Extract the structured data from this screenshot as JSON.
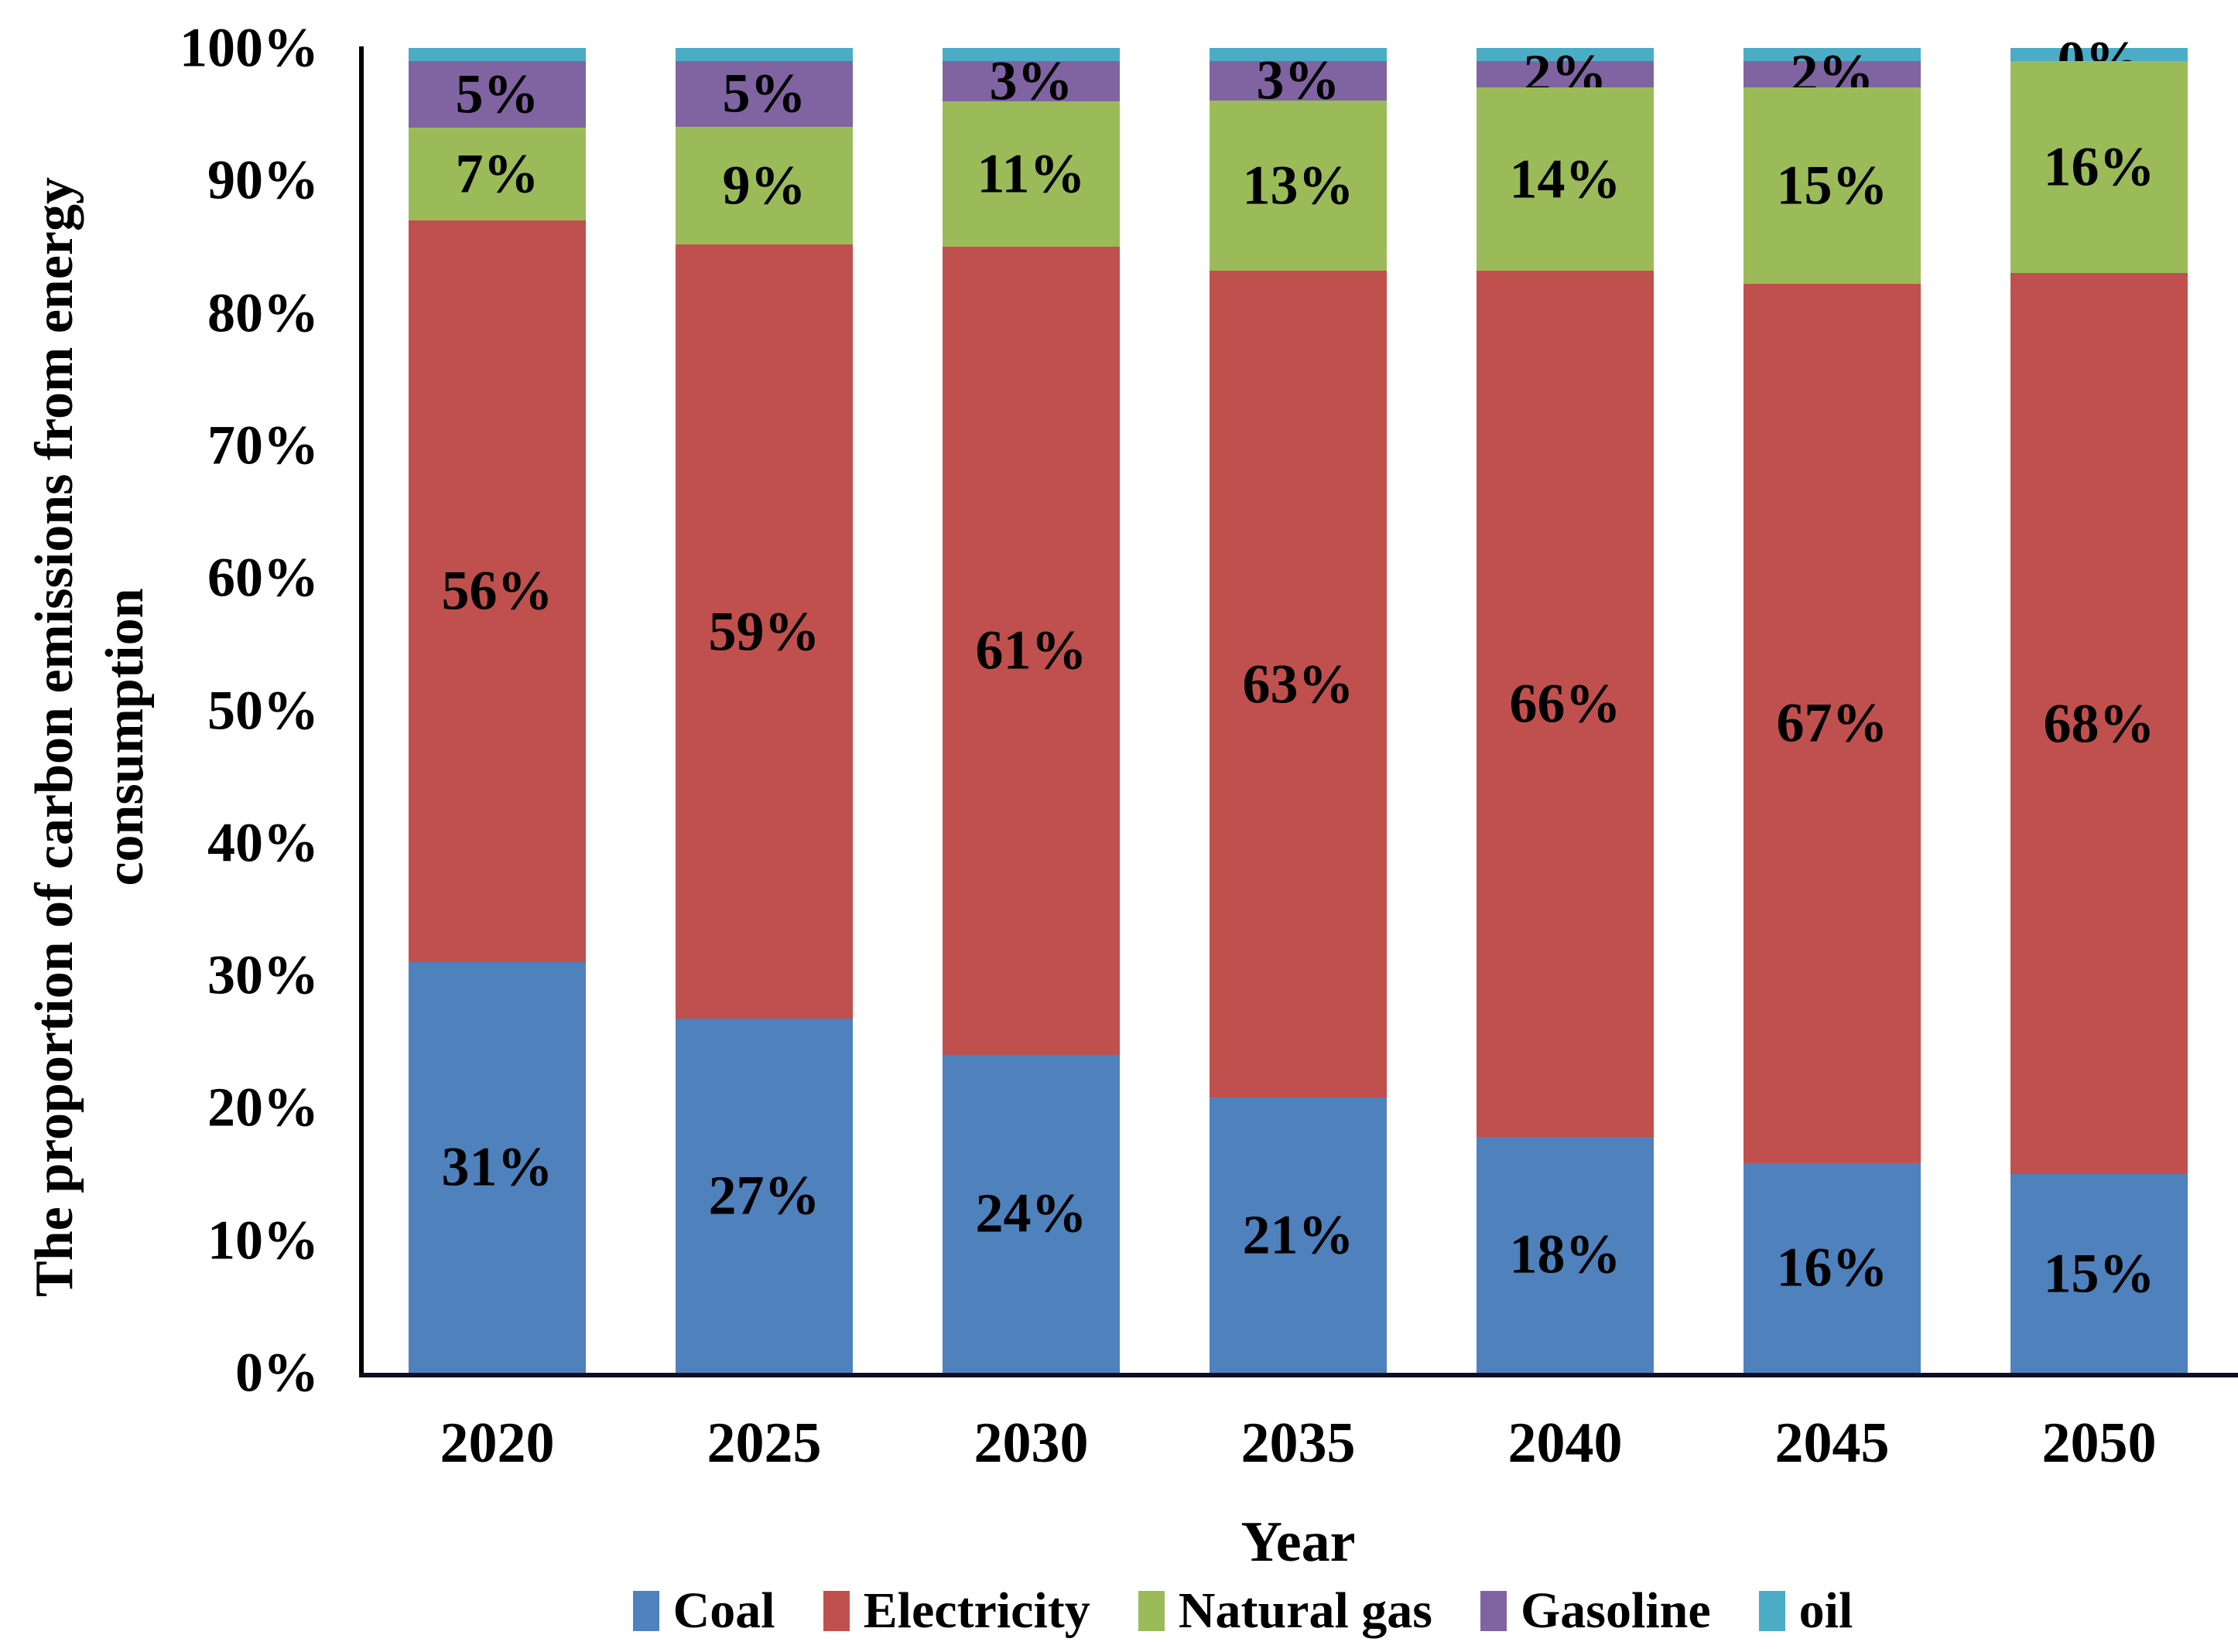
{
  "chart_data": {
    "type": "bar",
    "stacked": true,
    "percent_stacked": true,
    "title": "",
    "xlabel": "Year",
    "ylabel": "The proportion of carbon emissions from energy consumption",
    "ylabel_line1": "The proportion of carbon emissions from energy",
    "ylabel_line2": "consumption",
    "categories": [
      "2020",
      "2025",
      "2030",
      "2035",
      "2040",
      "2045",
      "2050"
    ],
    "series": [
      {
        "name": "Coal",
        "color": "#4F81BD",
        "values": [
          31,
          27,
          24,
          21,
          18,
          16,
          15
        ],
        "labels": [
          "31%",
          "27%",
          "24%",
          "21%",
          "18%",
          "16%",
          "15%"
        ]
      },
      {
        "name": "Electricity",
        "color": "#C0504D",
        "values": [
          56,
          59,
          61,
          63,
          66,
          67,
          68
        ],
        "labels": [
          "56%",
          "59%",
          "61%",
          "63%",
          "66%",
          "67%",
          "68%"
        ]
      },
      {
        "name": "Natural gas",
        "color": "#9BBB59",
        "values": [
          7,
          9,
          11,
          13,
          14,
          15,
          16
        ],
        "labels": [
          "7%",
          "9%",
          "11%",
          "13%",
          "14%",
          "15%",
          "16%"
        ]
      },
      {
        "name": "Gasoline",
        "color": "#8064A2",
        "values": [
          5,
          5,
          3,
          3,
          2,
          2,
          0
        ],
        "labels": [
          "5%",
          "5%",
          "3%",
          "3%",
          "2%",
          "2%",
          "0%"
        ]
      },
      {
        "name": "oil",
        "color": "#4BACC6",
        "values": [
          1,
          1,
          1,
          1,
          1,
          1,
          1
        ],
        "labels": [
          "",
          "",
          "",
          "",
          "",
          "",
          ""
        ]
      }
    ],
    "y_ticks": [
      {
        "value": 0,
        "label": "0%"
      },
      {
        "value": 10,
        "label": "10%"
      },
      {
        "value": 20,
        "label": "20%"
      },
      {
        "value": 30,
        "label": "30%"
      },
      {
        "value": 40,
        "label": "40%"
      },
      {
        "value": 50,
        "label": "50%"
      },
      {
        "value": 60,
        "label": "60%"
      },
      {
        "value": 70,
        "label": "70%"
      },
      {
        "value": 80,
        "label": "80%"
      },
      {
        "value": 90,
        "label": "90%"
      },
      {
        "value": 100,
        "label": "100%"
      }
    ],
    "ylim": [
      0,
      100
    ],
    "grid": false,
    "legend_position": "bottom",
    "background_color": "#ffffff",
    "axis_color": "#000000",
    "text_color": "#000000"
  }
}
